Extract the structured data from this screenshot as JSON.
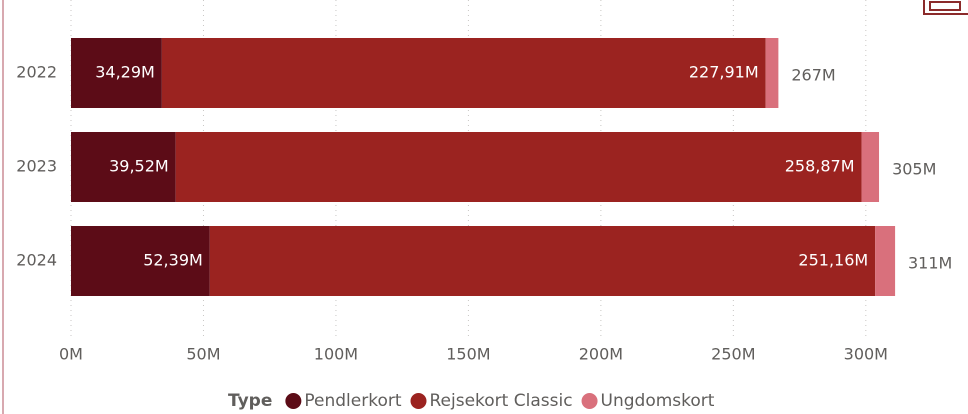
{
  "chart_data": {
    "type": "stacked-bar-horizontal",
    "categories": [
      "2022",
      "2023",
      "2024"
    ],
    "series": [
      {
        "name": "Pendlerkort",
        "color": "#5c0c17",
        "values": [
          34.29,
          39.52,
          52.39
        ],
        "value_labels": [
          "34,29M",
          "39,52M",
          "52,39M"
        ]
      },
      {
        "name": "Rejsekort Classic",
        "color": "#9b2320",
        "values": [
          227.91,
          258.87,
          251.16
        ],
        "value_labels": [
          "227,91M",
          "258,87M",
          "251,16M"
        ]
      },
      {
        "name": "Ungdomskort",
        "color": "#d9707c",
        "values": [
          4.8,
          6.6,
          7.5
        ]
      }
    ],
    "totals": {
      "values": [
        267,
        305,
        311
      ],
      "value_labels": [
        "267M",
        "305M",
        "311M"
      ]
    },
    "xlim": [
      0,
      328
    ],
    "xticks": [
      {
        "value": 0,
        "label": "0M"
      },
      {
        "value": 50,
        "label": "50M"
      },
      {
        "value": 100,
        "label": "100M"
      },
      {
        "value": 150,
        "label": "150M"
      },
      {
        "value": 200,
        "label": "200M"
      },
      {
        "value": 250,
        "label": "250M"
      },
      {
        "value": 300,
        "label": "300M"
      }
    ],
    "grid": true,
    "legend": {
      "title": "Type",
      "position": "bottom"
    }
  }
}
